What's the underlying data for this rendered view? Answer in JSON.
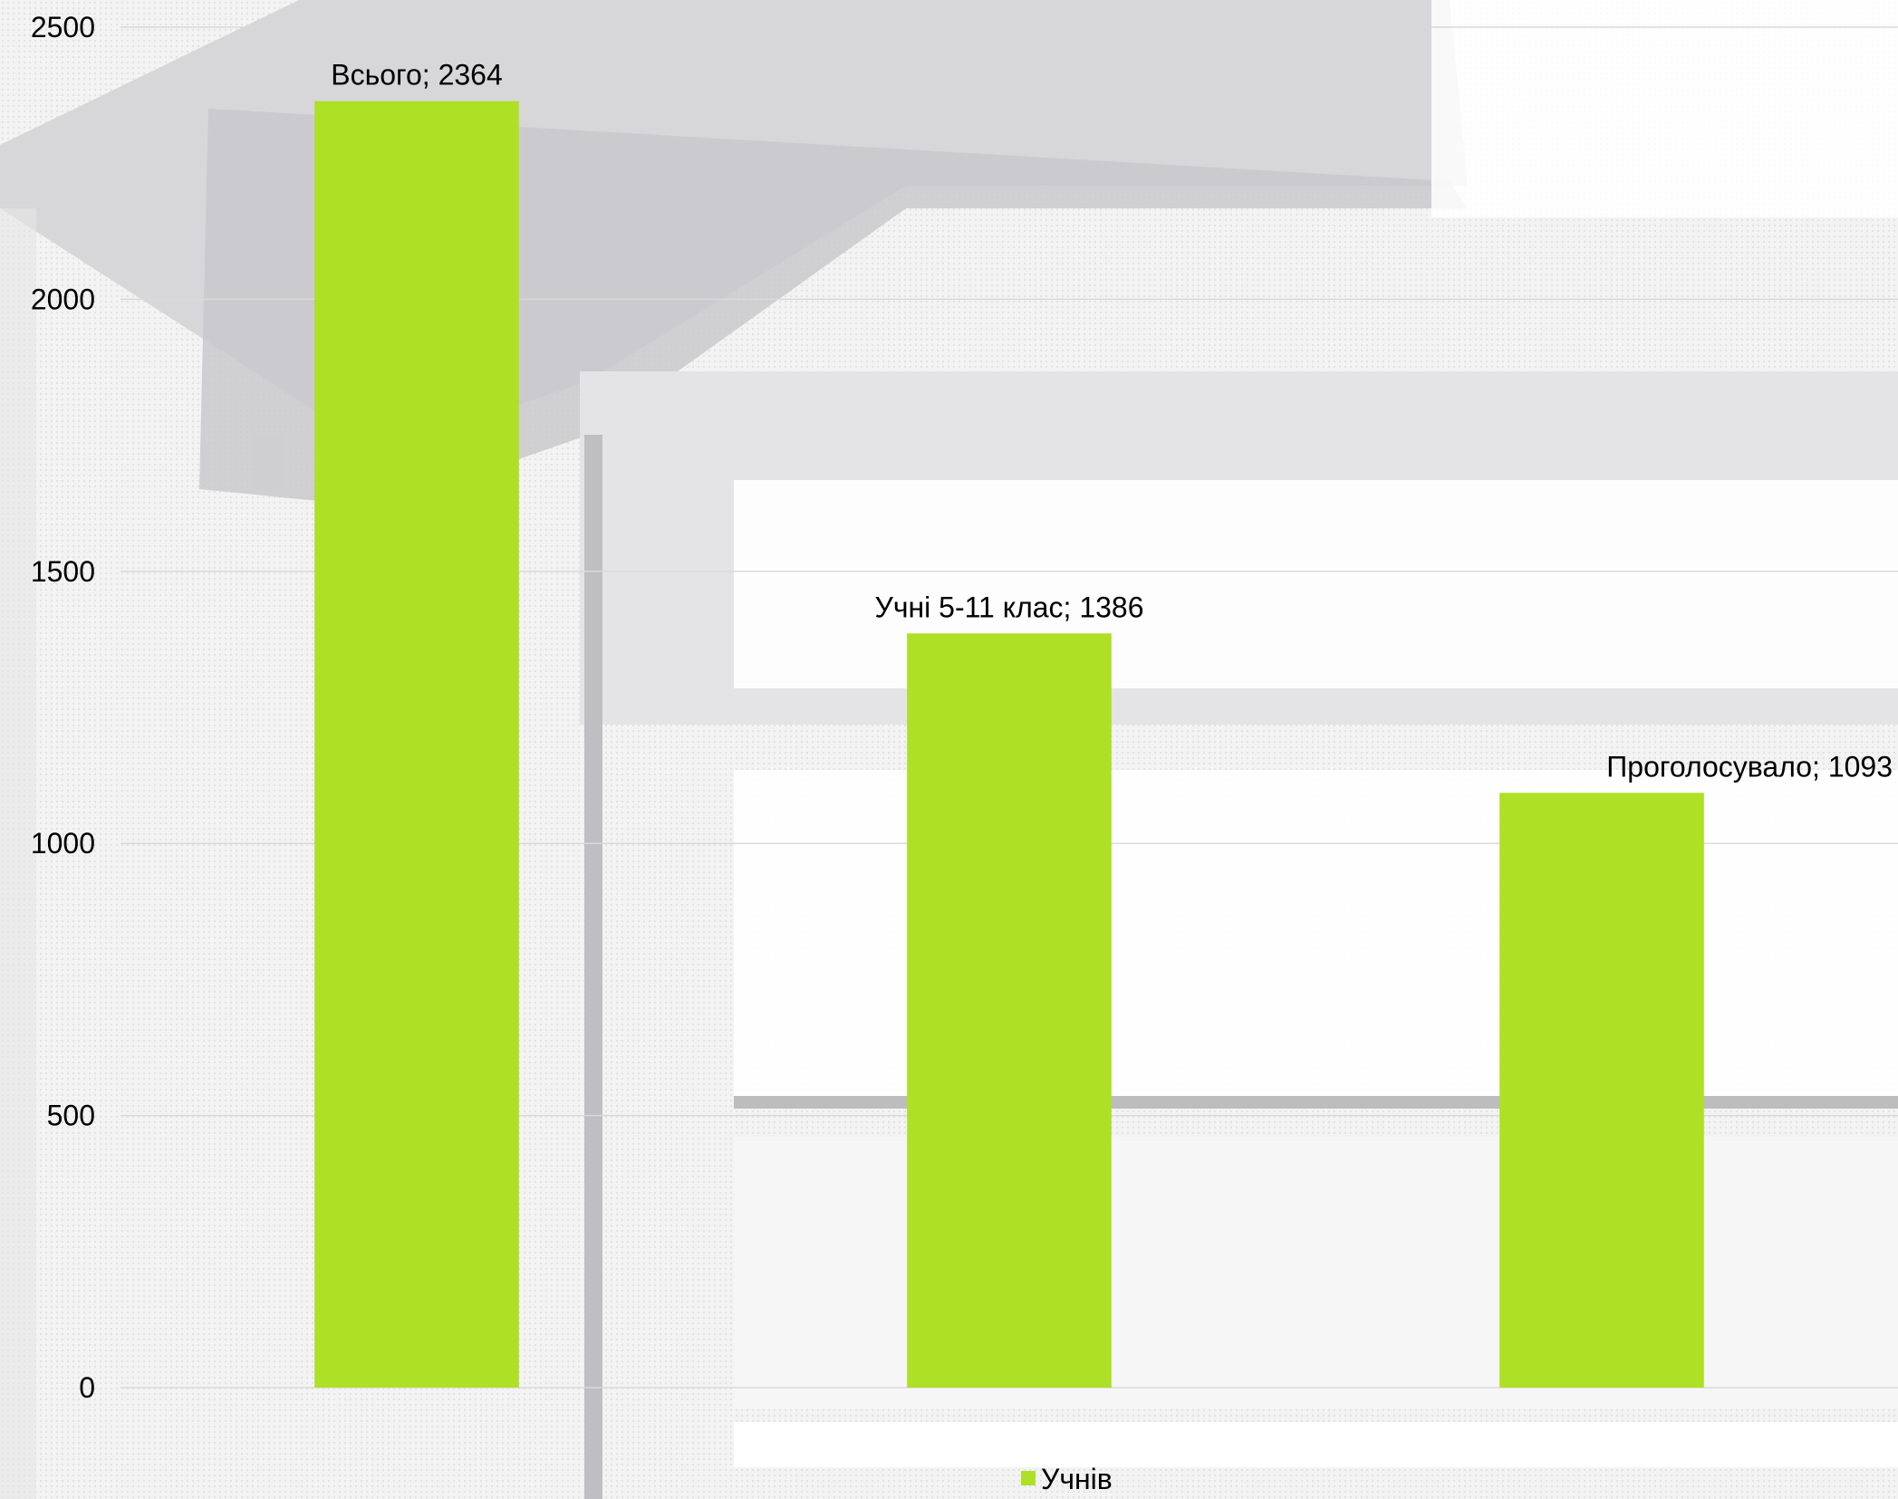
{
  "chart_data": {
    "type": "bar",
    "categories": [
      "Всього",
      "Учні 5-11 клас",
      "Проголосувало"
    ],
    "series": [
      {
        "name": "Учнів",
        "values": [
          2364,
          1386,
          1093
        ],
        "color": "#aee026"
      }
    ],
    "data_labels": [
      "Всього; 2364",
      "Учні 5-11 клас; 1386",
      "Проголосувало; 1093"
    ],
    "y_ticks": [
      "0",
      "500",
      "1000",
      "1500",
      "2000",
      "2500"
    ],
    "ylim": [
      0,
      2500
    ],
    "grid": true,
    "gridline_color": "#d9d9d9",
    "legend": {
      "position": "bottom",
      "label": "Учнів"
    },
    "background": "faded grayscale photograph of a school building"
  }
}
